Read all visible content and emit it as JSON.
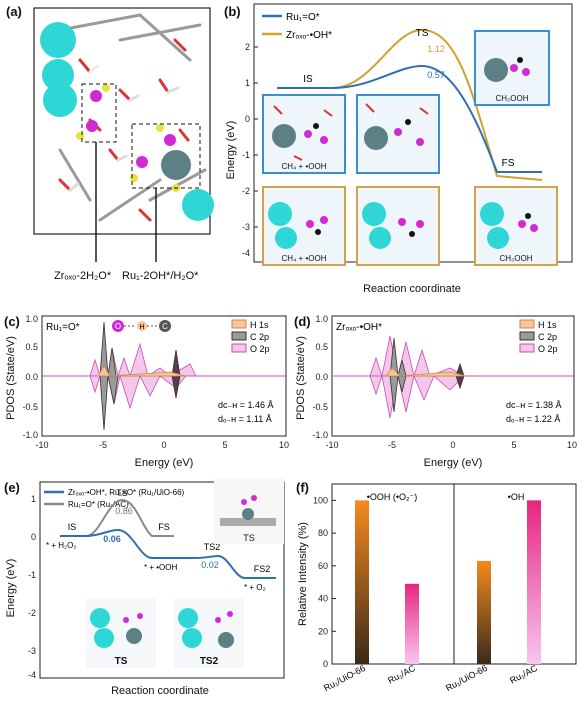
{
  "panel_labels": {
    "a": "(a)",
    "b": "(b)",
    "c": "(c)",
    "d": "(d)",
    "e": "(e)",
    "f": "(f)"
  },
  "panel_a": {
    "label1": "Zrₒₓₒ-2H₂O*",
    "label2": "Ru₁-2OH*/H₂O*"
  },
  "panel_b": {
    "legend": [
      "Ru₁=O*",
      "Zrₒₓₒ-•OH*"
    ],
    "colors": {
      "ru": "#2f6fb3",
      "zr": "#d3a12e",
      "box_blue": "#3a8fd0",
      "box_orange": "#d2a24a"
    },
    "ylabel": "Energy (eV)",
    "xlabel": "Reaction coordinate",
    "yticks": [
      "2",
      "1",
      "0",
      "-1",
      "-2",
      "-3",
      "-4"
    ],
    "state_labels": {
      "IS": "IS",
      "TS": "TS",
      "FS": "FS"
    },
    "barrier_zr": "1.12",
    "barrier_ru": "0.57",
    "captions": {
      "blue_left": "CH₄ + •OOH",
      "blue_right": "CH₃OOH",
      "orange_left": "CH₄ + •OOH",
      "orange_right": "CH₃OOH"
    }
  },
  "panel_c": {
    "title": "Ru₁=O*",
    "ylabel": "PDOS (State/eV)",
    "xlabel": "Energy (eV)",
    "xticks": [
      "-10",
      "-5",
      "0",
      "5",
      "10"
    ],
    "yticks": [
      "1.0",
      "0.5",
      "0.0",
      "-0.5",
      "-1.0"
    ],
    "legend": [
      "H 1s",
      "C 2p",
      "O 2p"
    ],
    "dch": "dᴄ₋ʜ = 1.46 Å",
    "doh": "dₒ₋ʜ = 1.11 Å",
    "atoms": [
      "O",
      "H",
      "C"
    ]
  },
  "panel_d": {
    "title": "Zrₒₓₒ-•OH*",
    "ylabel": "PDOS (State/eV)",
    "xlabel": "Energy (eV)",
    "xticks": [
      "-10",
      "-5",
      "0",
      "5",
      "10"
    ],
    "yticks": [
      "1.0",
      "0.5",
      "0.0",
      "-0.5",
      "-1.0"
    ],
    "legend": [
      "H 1s",
      "C 2p",
      "O 2p"
    ],
    "dch": "dᴄ₋ʜ = 1.38 Å",
    "doh": "dₒ₋ʜ = 1.22 Å"
  },
  "panel_e": {
    "legend": [
      "Zrₒₓₒ-•OH*, Ru₁=O* (Ru₁/UiO-66)",
      "Ru₁=O* (Ru₁/AC)"
    ],
    "colors": {
      "uio": "#2f6fb3",
      "ac": "#8a8a8a"
    },
    "ylabel": "Energy (eV)",
    "xlabel": "Reaction coordinate",
    "yticks": [
      "1",
      "0",
      "-1",
      "-2",
      "-3",
      "-4"
    ],
    "labels": {
      "IS": "IS",
      "TS": "TS",
      "FS": "FS",
      "TS2": "TS2",
      "FS2": "FS2"
    },
    "barrier_ac": "0.86",
    "barrier_uio": "0.06",
    "barrier_ts2": "0.02",
    "notes": {
      "h2o2": "* + H₂O₂",
      "ooh": "* + •OOH",
      "o2": "* + O₂"
    },
    "inset_captions": {
      "ts": "TS",
      "ts_left": "TS",
      "ts2": "TS2"
    }
  },
  "panel_f": {
    "ylabel": "Relative Intensity (%)",
    "yticks": [
      "0",
      "20",
      "40",
      "60",
      "80",
      "100"
    ],
    "group_titles": [
      "•OOH (•O₂⁻)",
      "•OH"
    ],
    "chart_data": {
      "type": "bar",
      "groups": [
        {
          "name": "•OOH (•O₂⁻)",
          "categories": [
            "Ru₁/UiO-66",
            "Ru₁/AC"
          ],
          "values": [
            100,
            49
          ]
        },
        {
          "name": "•OH",
          "categories": [
            "Ru₁/UiO-66",
            "Ru₁/AC"
          ],
          "values": [
            63,
            100
          ]
        }
      ],
      "ylim": [
        0,
        110
      ]
    },
    "colors": {
      "orange": "#f58a1f",
      "magenta": "#e8257f"
    }
  }
}
